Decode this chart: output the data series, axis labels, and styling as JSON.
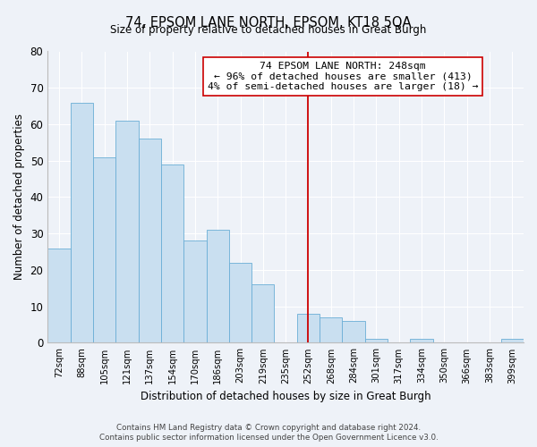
{
  "title": "74, EPSOM LANE NORTH, EPSOM, KT18 5QA",
  "subtitle": "Size of property relative to detached houses in Great Burgh",
  "xlabel": "Distribution of detached houses by size in Great Burgh",
  "ylabel": "Number of detached properties",
  "categories": [
    "72sqm",
    "88sqm",
    "105sqm",
    "121sqm",
    "137sqm",
    "154sqm",
    "170sqm",
    "186sqm",
    "203sqm",
    "219sqm",
    "235sqm",
    "252sqm",
    "268sqm",
    "284sqm",
    "301sqm",
    "317sqm",
    "334sqm",
    "350sqm",
    "366sqm",
    "383sqm",
    "399sqm"
  ],
  "values": [
    26,
    66,
    51,
    61,
    56,
    49,
    28,
    31,
    22,
    16,
    0,
    8,
    7,
    6,
    1,
    0,
    1,
    0,
    0,
    0,
    1
  ],
  "bar_color": "#c9dff0",
  "bar_edgecolor": "#6aaed6",
  "vline_index": 11,
  "vline_color": "#cc0000",
  "annotation_title": "74 EPSOM LANE NORTH: 248sqm",
  "annotation_line1": "← 96% of detached houses are smaller (413)",
  "annotation_line2": "4% of semi-detached houses are larger (18) →",
  "ylim": [
    0,
    80
  ],
  "yticks": [
    0,
    10,
    20,
    30,
    40,
    50,
    60,
    70,
    80
  ],
  "background_color": "#eef2f8",
  "grid_color": "#ffffff",
  "footer1": "Contains HM Land Registry data © Crown copyright and database right 2024.",
  "footer2": "Contains public sector information licensed under the Open Government Licence v3.0."
}
